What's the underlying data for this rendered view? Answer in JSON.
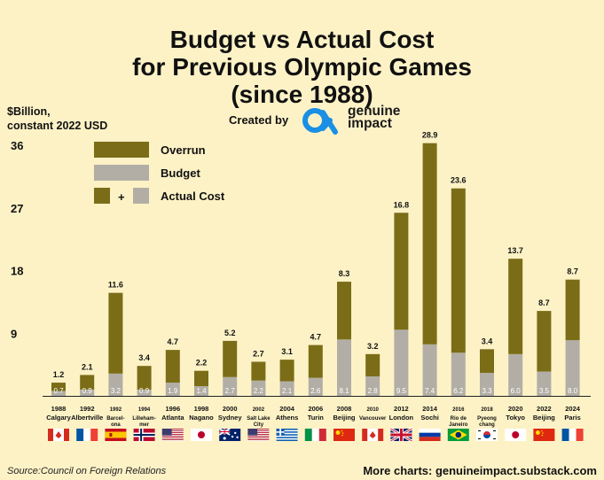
{
  "title": {
    "line1": "Budget vs Actual Cost",
    "line2": "for Previous Olympic Games",
    "line3": "(since 1988)"
  },
  "unit": {
    "line1": "$Billion,",
    "line2": "constant 2022 USD"
  },
  "credit": {
    "created_by": "Created by",
    "brand_line1": "genuine",
    "brand_line2": "impact"
  },
  "legend": {
    "overrun": "Overrun",
    "budget": "Budget",
    "plus": "+",
    "actual": "Actual Cost"
  },
  "footer": {
    "source": "Source:Council on Foreign Relations",
    "more": "More charts: genuineimpact.substack.com"
  },
  "colors": {
    "background": "#fdf2c6",
    "overrun": "#7b6d17",
    "budget": "#b2aea6",
    "axis": "#222222"
  },
  "chart_data": {
    "type": "bar",
    "stacked": true,
    "ylim": [
      0,
      36
    ],
    "yticks": [
      9,
      18,
      27,
      36
    ],
    "grid": false,
    "legend_position": "top-left",
    "series": [
      {
        "name": "Budget",
        "values": [
          0.7,
          0.9,
          3.2,
          0.9,
          1.9,
          1.4,
          2.7,
          2.2,
          2.1,
          2.6,
          8.1,
          2.8,
          9.5,
          7.4,
          6.2,
          3.3,
          6.0,
          3.5,
          8.0
        ]
      },
      {
        "name": "Overrun",
        "values": [
          1.2,
          2.1,
          11.6,
          3.4,
          4.7,
          2.2,
          5.2,
          2.7,
          3.1,
          4.7,
          8.3,
          3.2,
          16.8,
          28.9,
          23.6,
          3.4,
          13.7,
          8.7,
          8.7
        ]
      }
    ],
    "games": [
      {
        "year": "1988",
        "city": [
          "Calgary"
        ],
        "flag": "canada"
      },
      {
        "year": "1992",
        "city": [
          "Albertville"
        ],
        "flag": "france"
      },
      {
        "year": "1992",
        "city": [
          "Barcel-",
          "ona"
        ],
        "flag": "spain"
      },
      {
        "year": "1994",
        "city": [
          "Lilleham-",
          "mer"
        ],
        "flag": "norway"
      },
      {
        "year": "1996",
        "city": [
          "Atlanta"
        ],
        "flag": "usa"
      },
      {
        "year": "1998",
        "city": [
          "Nagano"
        ],
        "flag": "japan"
      },
      {
        "year": "2000",
        "city": [
          "Sydney"
        ],
        "flag": "australia"
      },
      {
        "year": "2002",
        "city": [
          "Salt Lake",
          "City"
        ],
        "flag": "usa"
      },
      {
        "year": "2004",
        "city": [
          "Athens"
        ],
        "flag": "greece"
      },
      {
        "year": "2006",
        "city": [
          "Turin"
        ],
        "flag": "italy"
      },
      {
        "year": "2008",
        "city": [
          "Beijing"
        ],
        "flag": "china"
      },
      {
        "year": "2010",
        "city": [
          "Vancouver"
        ],
        "flag": "canada"
      },
      {
        "year": "2012",
        "city": [
          "London"
        ],
        "flag": "uk"
      },
      {
        "year": "2014",
        "city": [
          "Sochi"
        ],
        "flag": "russia"
      },
      {
        "year": "2016",
        "city": [
          "Rio de",
          "Janeiro"
        ],
        "flag": "brazil"
      },
      {
        "year": "2018",
        "city": [
          "Pyeong",
          "chang"
        ],
        "flag": "south-korea"
      },
      {
        "year": "2020",
        "city": [
          "Tokyo"
        ],
        "flag": "japan"
      },
      {
        "year": "2022",
        "city": [
          "Beijing"
        ],
        "flag": "china"
      },
      {
        "year": "2024",
        "city": [
          "Paris"
        ],
        "flag": "france"
      }
    ]
  }
}
